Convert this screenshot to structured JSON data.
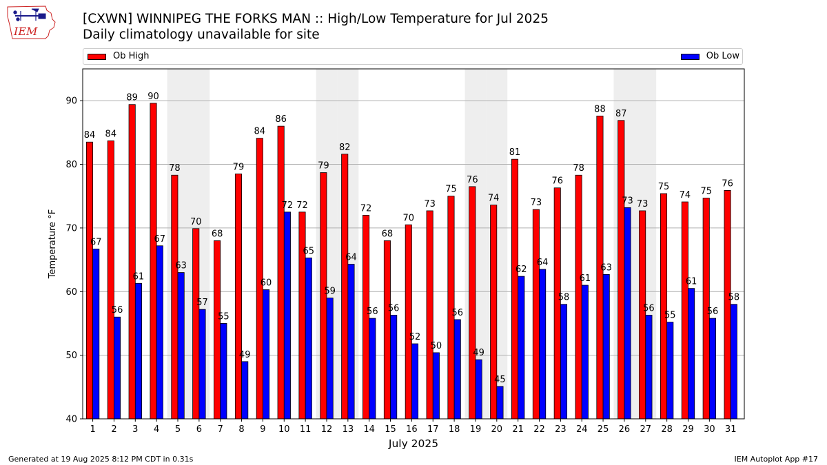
{
  "header": {
    "title": "[CXWN] WINNIPEG THE FORKS  MAN :: High/Low Temperature for Jul 2025",
    "subtitle": "Daily climatology unavailable for site"
  },
  "logo": {
    "text": "IEM"
  },
  "legend": {
    "high_label": "Ob High",
    "low_label": "Ob Low",
    "high_color": "#ff0000",
    "low_color": "#0000ff"
  },
  "footer": {
    "left": "Generated at 19 Aug 2025 8:12 PM CDT in 0.31s",
    "right": "IEM Autoplot App #17"
  },
  "chart_data": {
    "type": "bar",
    "xlabel": "July 2025",
    "ylabel": "Temperature °F",
    "ylim": [
      40,
      95
    ],
    "yticks": [
      40,
      50,
      60,
      70,
      80,
      90
    ],
    "grid": "horizontal",
    "legend_position": "top",
    "categories": [
      "1",
      "2",
      "3",
      "4",
      "5",
      "6",
      "7",
      "8",
      "9",
      "10",
      "11",
      "12",
      "13",
      "14",
      "15",
      "16",
      "17",
      "18",
      "19",
      "20",
      "21",
      "22",
      "23",
      "24",
      "25",
      "26",
      "27",
      "28",
      "29",
      "30",
      "31"
    ],
    "weekend_shaded_days": [
      5,
      6,
      12,
      13,
      19,
      20,
      26,
      27
    ],
    "series": [
      {
        "name": "Ob High",
        "color": "#ff0000",
        "values": [
          83.5,
          83.7,
          89.4,
          89.6,
          78.3,
          69.9,
          68.0,
          78.5,
          84.1,
          86.0,
          72.5,
          78.7,
          81.6,
          72.0,
          68.0,
          70.5,
          72.7,
          75.0,
          76.5,
          73.6,
          80.8,
          72.9,
          76.3,
          78.3,
          87.6,
          86.9,
          72.7,
          75.4,
          74.1,
          74.7,
          75.9
        ],
        "labels": [
          "84",
          "84",
          "89",
          "90",
          "78",
          "70",
          "68",
          "79",
          "84",
          "86",
          "72",
          "79",
          "82",
          "72",
          "68",
          "70",
          "73",
          "75",
          "76",
          "74",
          "81",
          "73",
          "76",
          "78",
          "88",
          "87",
          "73",
          "75",
          "74",
          "75",
          "76"
        ]
      },
      {
        "name": "Ob Low",
        "color": "#0000ff",
        "values": [
          66.7,
          56.0,
          61.3,
          67.2,
          63.0,
          57.2,
          55.0,
          49.0,
          60.3,
          72.5,
          65.3,
          59.0,
          64.3,
          55.8,
          56.3,
          51.8,
          50.4,
          55.6,
          49.3,
          45.1,
          62.4,
          63.5,
          58.0,
          61.0,
          62.7,
          73.2,
          56.3,
          55.2,
          60.5,
          55.8,
          58.0
        ],
        "labels": [
          "67",
          "56",
          "61",
          "67",
          "63",
          "57",
          "55",
          "49",
          "60",
          "72",
          "65",
          "59",
          "64",
          "56",
          "56",
          "52",
          "50",
          "56",
          "49",
          "45",
          "62",
          "64",
          "58",
          "61",
          "63",
          "73",
          "56",
          "55",
          "61",
          "56",
          "58"
        ]
      }
    ]
  }
}
